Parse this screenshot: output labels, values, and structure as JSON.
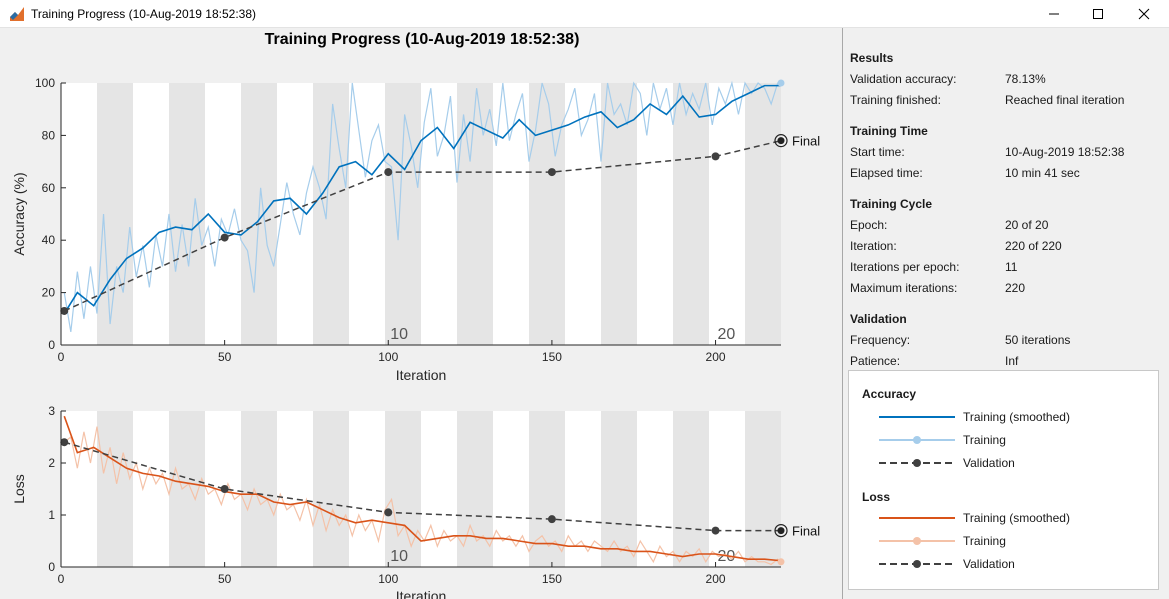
{
  "window": {
    "title": "Training Progress (10-Aug-2019 18:52:38)",
    "app_icon": "matlab-icon",
    "controls": [
      "minimize-icon",
      "maximize-icon",
      "close-icon"
    ]
  },
  "plot_title": "Training Progress (10-Aug-2019 18:52:38)",
  "colors": {
    "acc_smoothed": "#0072bd",
    "acc_raw": "#a6cdeb",
    "loss_smoothed": "#d95319",
    "loss_raw": "#f4c2a8",
    "validation": "#404040",
    "epoch_band": "#e5e5e5"
  },
  "chart_data": [
    {
      "type": "line",
      "name": "Accuracy",
      "xlabel": "Iteration",
      "ylabel": "Accuracy (%)",
      "xlim": [
        0,
        220
      ],
      "ylim": [
        0,
        100
      ],
      "xticks": [
        0,
        50,
        100,
        150,
        200
      ],
      "yticks": [
        0,
        20,
        40,
        60,
        80,
        100
      ],
      "epoch_labels": [
        {
          "x": 100,
          "text": "10"
        },
        {
          "x": 200,
          "text": "20"
        }
      ],
      "final_label": "Final",
      "series": [
        {
          "name": "Training (smoothed)",
          "x": [
            1,
            5,
            10,
            15,
            20,
            25,
            30,
            35,
            40,
            45,
            50,
            55,
            60,
            65,
            70,
            75,
            80,
            85,
            90,
            95,
            100,
            105,
            110,
            115,
            120,
            125,
            130,
            135,
            140,
            145,
            150,
            155,
            160,
            165,
            170,
            175,
            180,
            185,
            190,
            195,
            200,
            205,
            210,
            215,
            220
          ],
          "values": [
            12,
            20,
            15,
            25,
            33,
            37,
            43,
            45,
            44,
            50,
            43,
            42,
            47,
            55,
            56,
            50,
            58,
            68,
            70,
            65,
            73,
            67,
            78,
            83,
            75,
            85,
            82,
            79,
            86,
            80,
            82,
            84,
            87,
            89,
            83,
            86,
            92,
            88,
            95,
            87,
            88,
            93,
            96,
            99,
            99
          ]
        },
        {
          "name": "Training",
          "x": [
            1,
            3,
            5,
            7,
            9,
            11,
            13,
            15,
            17,
            19,
            21,
            23,
            25,
            27,
            29,
            31,
            33,
            35,
            37,
            39,
            41,
            43,
            45,
            47,
            49,
            51,
            53,
            55,
            57,
            59,
            61,
            63,
            65,
            67,
            69,
            71,
            73,
            75,
            77,
            79,
            81,
            83,
            85,
            87,
            89,
            91,
            93,
            95,
            97,
            99,
            101,
            103,
            105,
            107,
            109,
            111,
            113,
            115,
            117,
            119,
            121,
            123,
            125,
            127,
            129,
            131,
            133,
            135,
            137,
            139,
            141,
            143,
            145,
            147,
            149,
            151,
            153,
            155,
            157,
            159,
            161,
            163,
            165,
            167,
            169,
            171,
            173,
            175,
            177,
            179,
            181,
            183,
            185,
            187,
            189,
            191,
            193,
            195,
            197,
            199,
            201,
            203,
            205,
            207,
            209,
            211,
            213,
            215,
            217,
            219,
            220
          ],
          "values": [
            20,
            5,
            28,
            10,
            30,
            12,
            50,
            8,
            30,
            20,
            45,
            26,
            38,
            22,
            42,
            30,
            50,
            28,
            46,
            30,
            56,
            38,
            45,
            30,
            48,
            42,
            52,
            40,
            36,
            20,
            60,
            38,
            30,
            46,
            62,
            50,
            42,
            58,
            68,
            60,
            48,
            92,
            75,
            60,
            100,
            82,
            64,
            78,
            84,
            70,
            68,
            40,
            88,
            76,
            60,
            85,
            98,
            72,
            80,
            95,
            62,
            88,
            70,
            98,
            80,
            90,
            76,
            100,
            78,
            88,
            96,
            70,
            82,
            100,
            92,
            72,
            84,
            90,
            98,
            80,
            86,
            96,
            70,
            100,
            88,
            92,
            84,
            100,
            96,
            80,
            100,
            90,
            98,
            84,
            100,
            88,
            96,
            90,
            100,
            84,
            98,
            92,
            100,
            88,
            100,
            96,
            100,
            98,
            92,
            100,
            100
          ]
        },
        {
          "name": "Validation",
          "x": [
            1,
            50,
            100,
            150,
            200,
            220
          ],
          "values": [
            13,
            41,
            66,
            66,
            72,
            78
          ]
        }
      ]
    },
    {
      "type": "line",
      "name": "Loss",
      "xlabel": "Iteration",
      "ylabel": "Loss",
      "xlim": [
        0,
        220
      ],
      "ylim": [
        0,
        3
      ],
      "xticks": [
        0,
        50,
        100,
        150,
        200
      ],
      "yticks": [
        0,
        1,
        2,
        3
      ],
      "epoch_labels": [
        {
          "x": 100,
          "text": "10"
        },
        {
          "x": 200,
          "text": "20"
        }
      ],
      "final_label": "Final",
      "series": [
        {
          "name": "Training (smoothed)",
          "x": [
            1,
            5,
            10,
            15,
            20,
            25,
            30,
            35,
            40,
            45,
            50,
            55,
            60,
            65,
            70,
            75,
            80,
            85,
            90,
            95,
            100,
            105,
            110,
            115,
            120,
            125,
            130,
            135,
            140,
            145,
            150,
            155,
            160,
            165,
            170,
            175,
            180,
            185,
            190,
            195,
            200,
            205,
            210,
            215,
            220
          ],
          "values": [
            2.9,
            2.2,
            2.3,
            2.1,
            1.9,
            1.8,
            1.75,
            1.65,
            1.6,
            1.55,
            1.45,
            1.4,
            1.4,
            1.25,
            1.2,
            1.25,
            1.1,
            0.95,
            0.85,
            0.9,
            0.85,
            0.8,
            0.5,
            0.55,
            0.6,
            0.6,
            0.55,
            0.55,
            0.5,
            0.45,
            0.45,
            0.4,
            0.4,
            0.35,
            0.35,
            0.3,
            0.3,
            0.25,
            0.2,
            0.25,
            0.25,
            0.2,
            0.15,
            0.15,
            0.12
          ]
        },
        {
          "name": "Training",
          "x": [
            1,
            3,
            5,
            7,
            9,
            11,
            13,
            15,
            17,
            19,
            21,
            23,
            25,
            27,
            29,
            31,
            33,
            35,
            37,
            39,
            41,
            43,
            45,
            47,
            49,
            51,
            53,
            55,
            57,
            59,
            61,
            63,
            65,
            67,
            69,
            71,
            73,
            75,
            77,
            79,
            81,
            83,
            85,
            87,
            89,
            91,
            93,
            95,
            97,
            99,
            101,
            103,
            105,
            107,
            109,
            111,
            113,
            115,
            117,
            119,
            121,
            123,
            125,
            127,
            129,
            131,
            133,
            135,
            137,
            139,
            141,
            143,
            145,
            147,
            149,
            151,
            153,
            155,
            157,
            159,
            161,
            163,
            165,
            167,
            169,
            171,
            173,
            175,
            177,
            179,
            181,
            183,
            185,
            187,
            189,
            191,
            193,
            195,
            197,
            199,
            201,
            203,
            205,
            207,
            209,
            211,
            213,
            215,
            217,
            219,
            220
          ],
          "values": [
            2.4,
            2.5,
            1.9,
            2.6,
            2.0,
            2.7,
            1.8,
            2.3,
            1.6,
            2.2,
            1.7,
            2.0,
            1.5,
            1.9,
            1.6,
            1.8,
            1.4,
            1.9,
            1.5,
            1.6,
            1.3,
            1.7,
            1.4,
            1.5,
            1.2,
            1.6,
            1.3,
            1.4,
            1.1,
            1.5,
            1.2,
            1.3,
            1.0,
            1.4,
            1.1,
            1.2,
            0.9,
            1.3,
            0.8,
            1.2,
            0.7,
            1.1,
            0.8,
            1.0,
            0.6,
            1.0,
            0.7,
            0.9,
            0.5,
            1.1,
            1.3,
            0.6,
            0.8,
            0.4,
            0.7,
            0.5,
            0.8,
            0.4,
            0.7,
            0.5,
            0.6,
            0.4,
            0.8,
            0.5,
            0.6,
            0.4,
            0.7,
            0.5,
            0.6,
            0.4,
            0.6,
            0.3,
            0.5,
            0.6,
            0.4,
            0.5,
            0.3,
            0.6,
            0.4,
            0.5,
            0.3,
            0.5,
            0.4,
            0.3,
            0.5,
            0.3,
            0.4,
            0.2,
            0.5,
            0.3,
            0.1,
            0.4,
            0.2,
            0.3,
            0.1,
            0.3,
            0.2,
            0.35,
            0.1,
            0.3,
            0.2,
            0.25,
            0.15,
            0.3,
            0.1,
            0.2,
            0.1,
            0.1,
            0.05,
            0.15,
            0.1
          ]
        },
        {
          "name": "Validation",
          "x": [
            1,
            50,
            100,
            150,
            200,
            220
          ],
          "values": [
            2.4,
            1.5,
            1.05,
            0.92,
            0.7,
            0.7
          ]
        }
      ]
    }
  ],
  "results": {
    "sections": [
      {
        "title": "Results",
        "rows": [
          {
            "label": "Validation accuracy:",
            "value": "78.13%"
          },
          {
            "label": "Training finished:",
            "value": "Reached final iteration"
          }
        ]
      },
      {
        "title": "Training Time",
        "rows": [
          {
            "label": "Start time:",
            "value": "10-Aug-2019 18:52:38"
          },
          {
            "label": "Elapsed time:",
            "value": "10 min 41 sec"
          }
        ]
      },
      {
        "title": "Training Cycle",
        "rows": [
          {
            "label": "Epoch:",
            "value": "20 of 20"
          },
          {
            "label": "Iteration:",
            "value": "220 of 220"
          },
          {
            "label": "Iterations per epoch:",
            "value": "11"
          },
          {
            "label": "Maximum iterations:",
            "value": "220"
          }
        ]
      },
      {
        "title": "Validation",
        "rows": [
          {
            "label": "Frequency:",
            "value": "50 iterations"
          },
          {
            "label": "Patience:",
            "value": "Inf"
          }
        ]
      }
    ]
  },
  "legend": {
    "accuracy_title": "Accuracy",
    "loss_title": "Loss",
    "accuracy_items": [
      {
        "label": "Training (smoothed)",
        "style": "smoothed"
      },
      {
        "label": "Training",
        "style": "raw"
      },
      {
        "label": "Validation",
        "style": "validation"
      }
    ],
    "loss_items": [
      {
        "label": "Training (smoothed)",
        "style": "smoothed"
      },
      {
        "label": "Training",
        "style": "raw"
      },
      {
        "label": "Validation",
        "style": "validation"
      }
    ]
  }
}
